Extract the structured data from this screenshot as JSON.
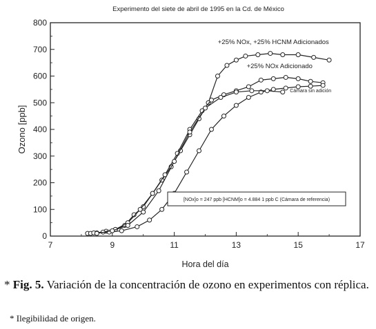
{
  "chart_data": {
    "type": "line",
    "title": "Experimento del siete de abril de 1995 en la Cd. de México",
    "xlabel": "Hora del día",
    "ylabel": "Ozono [ppb]",
    "xlim": [
      7,
      17
    ],
    "ylim": [
      0,
      800
    ],
    "x_ticks": [
      "7",
      "9",
      "11",
      "13",
      "15",
      "17"
    ],
    "y_ticks": [
      "0",
      "100",
      "200",
      "300",
      "400",
      "500",
      "600",
      "700",
      "800"
    ],
    "grid": false,
    "series": [
      {
        "name": "+25% NOx, +25% HCNM Adicionados",
        "x": [
          8.2,
          8.5,
          8.8,
          9.1,
          9.4,
          9.7,
          10.0,
          10.3,
          10.6,
          10.9,
          11.2,
          11.5,
          11.8,
          12.1,
          12.4,
          12.7,
          13.0,
          13.3,
          13.7,
          14.1,
          14.5,
          15.0,
          15.5,
          16.0
        ],
        "y": [
          10,
          12,
          18,
          25,
          40,
          80,
          110,
          160,
          210,
          260,
          320,
          380,
          440,
          500,
          600,
          640,
          660,
          675,
          680,
          685,
          680,
          680,
          670,
          660
        ]
      },
      {
        "name": "+25% NOx Adicionado",
        "x": [
          8.3,
          8.7,
          9.1,
          9.5,
          9.9,
          10.3,
          10.7,
          11.1,
          11.5,
          11.9,
          12.2,
          12.6,
          13.0,
          13.4,
          13.8,
          14.2,
          14.6,
          15.0,
          15.4,
          15.8
        ],
        "y": [
          10,
          15,
          25,
          50,
          100,
          160,
          230,
          310,
          400,
          470,
          510,
          530,
          545,
          560,
          585,
          590,
          595,
          590,
          580,
          575
        ]
      },
      {
        "name": "Cámara sin adición",
        "x": [
          8.4,
          8.9,
          9.3,
          9.8,
          10.2,
          10.6,
          11.0,
          11.4,
          11.8,
          12.2,
          12.6,
          13.0,
          13.4,
          13.8,
          14.2,
          14.6,
          15.0,
          15.4,
          15.8
        ],
        "y": [
          12,
          15,
          20,
          35,
          60,
          100,
          160,
          240,
          320,
          400,
          450,
          490,
          520,
          540,
          550,
          555,
          560,
          562,
          565
        ]
      },
      {
        "name": "",
        "x": [
          8.5,
          9.0,
          9.5,
          10.0,
          10.5,
          11.0,
          11.5,
          12.0,
          12.5,
          13.0,
          13.5,
          14.0,
          14.5
        ],
        "y": [
          10,
          20,
          40,
          90,
          170,
          280,
          390,
          480,
          520,
          540,
          545,
          545,
          540
        ]
      }
    ],
    "series_labels": [
      {
        "text": "+25% NOx, +25% HCNM Adicionados",
        "x": 14.2,
        "y": 720,
        "size": 9.5
      },
      {
        "text": "+25% NOx Adicionado",
        "x": 14.4,
        "y": 630,
        "size": 9.5
      },
      {
        "text": "Cámara sin adición",
        "x": 15.4,
        "y": 540,
        "size": 7
      }
    ],
    "annotation": "[NOx]o = 247 ppb [HCNM]o = 4.884 1 ppb C (Cámara de referencia)"
  },
  "caption": {
    "marker": "*",
    "fig_label": "Fig. 5.",
    "text": "Variación de la concentración de ozono en experimentos con réplica."
  },
  "footnote": "* Ilegibilidad de origen."
}
